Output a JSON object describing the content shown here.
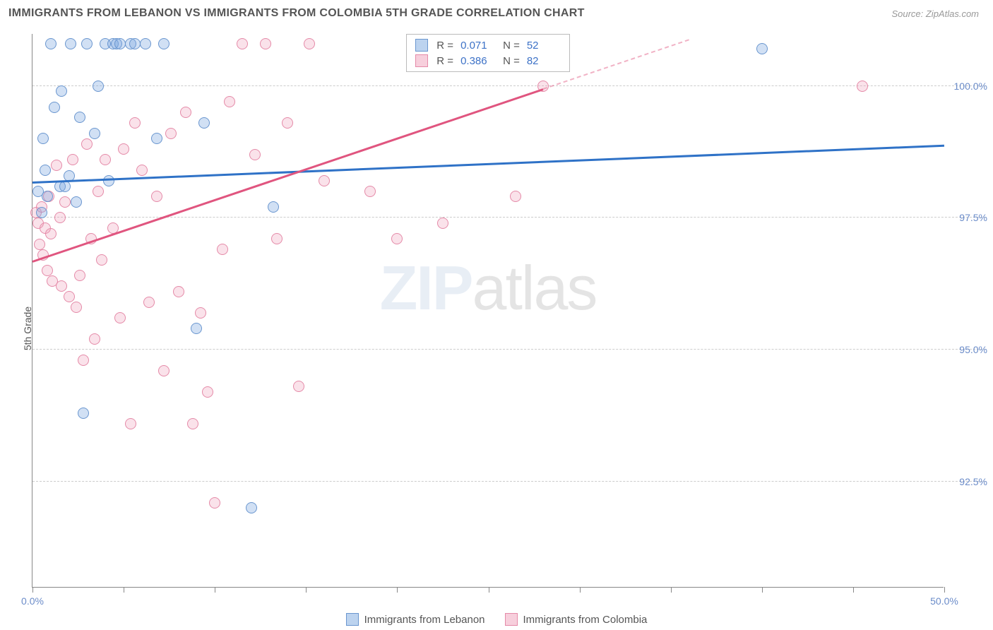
{
  "header": {
    "title": "IMMIGRANTS FROM LEBANON VS IMMIGRANTS FROM COLOMBIA 5TH GRADE CORRELATION CHART",
    "source_label": "Source: ZipAtlas.com"
  },
  "chart": {
    "type": "scatter",
    "ylabel": "5th Grade",
    "xlim": [
      0,
      50
    ],
    "ylim": [
      90.5,
      101.0
    ],
    "xticks": [
      0,
      5,
      10,
      15,
      20,
      25,
      30,
      35,
      40,
      45,
      50
    ],
    "xtick_labels": {
      "0": "0.0%",
      "50": "50.0%"
    },
    "yticks": [
      92.5,
      95.0,
      97.5,
      100.0
    ],
    "background_color": "#ffffff",
    "grid_color": "#cccccc",
    "axis_color": "#888888",
    "marker_size": 16,
    "series": {
      "blue": {
        "label": "Immigrants from Lebanon",
        "color_fill": "rgba(122,167,224,0.35)",
        "color_stroke": "#6a96cf",
        "r": "0.071",
        "n": "52",
        "trend": {
          "x0": 0,
          "y0": 98.2,
          "x1": 50,
          "y1": 98.9,
          "solid_until_x": 50,
          "color": "#2f72c7"
        },
        "points": [
          [
            0.3,
            98.0
          ],
          [
            0.5,
            97.6
          ],
          [
            0.6,
            99.0
          ],
          [
            0.7,
            98.4
          ],
          [
            0.8,
            97.9
          ],
          [
            1.0,
            100.8
          ],
          [
            1.2,
            99.6
          ],
          [
            1.5,
            98.1
          ],
          [
            1.6,
            99.9
          ],
          [
            1.8,
            98.1
          ],
          [
            2.0,
            98.3
          ],
          [
            2.1,
            100.8
          ],
          [
            2.4,
            97.8
          ],
          [
            2.6,
            99.4
          ],
          [
            2.8,
            93.8
          ],
          [
            3.0,
            100.8
          ],
          [
            3.4,
            99.1
          ],
          [
            3.6,
            100.0
          ],
          [
            4.0,
            100.8
          ],
          [
            4.2,
            98.2
          ],
          [
            4.4,
            100.8
          ],
          [
            4.6,
            100.8
          ],
          [
            4.8,
            100.8
          ],
          [
            5.4,
            100.8
          ],
          [
            5.6,
            100.8
          ],
          [
            6.2,
            100.8
          ],
          [
            6.8,
            99.0
          ],
          [
            7.2,
            100.8
          ],
          [
            9.0,
            95.4
          ],
          [
            9.4,
            99.3
          ],
          [
            12.0,
            92.0
          ],
          [
            13.2,
            97.7
          ],
          [
            40.0,
            100.7
          ]
        ]
      },
      "pink": {
        "label": "Immigrants from Colombia",
        "color_fill": "rgba(240,160,185,0.30)",
        "color_stroke": "#e58aa8",
        "r": "0.386",
        "n": "82",
        "trend": {
          "x0": 0,
          "y0": 96.7,
          "x1": 36,
          "y1": 100.9,
          "solid_until_x": 28,
          "color": "#e0557f"
        },
        "points": [
          [
            0.2,
            97.6
          ],
          [
            0.3,
            97.4
          ],
          [
            0.4,
            97.0
          ],
          [
            0.5,
            97.7
          ],
          [
            0.6,
            96.8
          ],
          [
            0.7,
            97.3
          ],
          [
            0.8,
            96.5
          ],
          [
            0.9,
            97.9
          ],
          [
            1.0,
            97.2
          ],
          [
            1.1,
            96.3
          ],
          [
            1.3,
            98.5
          ],
          [
            1.5,
            97.5
          ],
          [
            1.6,
            96.2
          ],
          [
            1.8,
            97.8
          ],
          [
            2.0,
            96.0
          ],
          [
            2.2,
            98.6
          ],
          [
            2.4,
            95.8
          ],
          [
            2.6,
            96.4
          ],
          [
            2.8,
            94.8
          ],
          [
            3.0,
            98.9
          ],
          [
            3.2,
            97.1
          ],
          [
            3.4,
            95.2
          ],
          [
            3.6,
            98.0
          ],
          [
            3.8,
            96.7
          ],
          [
            4.0,
            98.6
          ],
          [
            4.4,
            97.3
          ],
          [
            4.8,
            95.6
          ],
          [
            5.0,
            98.8
          ],
          [
            5.4,
            93.6
          ],
          [
            5.6,
            99.3
          ],
          [
            6.0,
            98.4
          ],
          [
            6.4,
            95.9
          ],
          [
            6.8,
            97.9
          ],
          [
            7.2,
            94.6
          ],
          [
            7.6,
            99.1
          ],
          [
            8.0,
            96.1
          ],
          [
            8.4,
            99.5
          ],
          [
            8.8,
            93.6
          ],
          [
            9.2,
            95.7
          ],
          [
            9.6,
            94.2
          ],
          [
            10.0,
            92.1
          ],
          [
            10.4,
            96.9
          ],
          [
            10.8,
            99.7
          ],
          [
            11.5,
            100.8
          ],
          [
            12.2,
            98.7
          ],
          [
            12.8,
            100.8
          ],
          [
            13.4,
            97.1
          ],
          [
            14.0,
            99.3
          ],
          [
            14.6,
            94.3
          ],
          [
            15.2,
            100.8
          ],
          [
            16.0,
            98.2
          ],
          [
            18.5,
            98.0
          ],
          [
            20.0,
            97.1
          ],
          [
            22.5,
            97.4
          ],
          [
            26.5,
            97.9
          ],
          [
            28.0,
            100.0
          ],
          [
            45.5,
            100.0
          ]
        ]
      }
    },
    "legend_box": {
      "rows": [
        {
          "swatch": "blue",
          "r_label": "R =",
          "r_val": "0.071",
          "n_label": "N =",
          "n_val": "52"
        },
        {
          "swatch": "pink",
          "r_label": "R =",
          "r_val": "0.386",
          "n_label": "N =",
          "n_val": "82"
        }
      ]
    },
    "watermark": {
      "bold": "ZIP",
      "rest": "atlas"
    }
  },
  "text_color_axis": "#6b8cc9"
}
